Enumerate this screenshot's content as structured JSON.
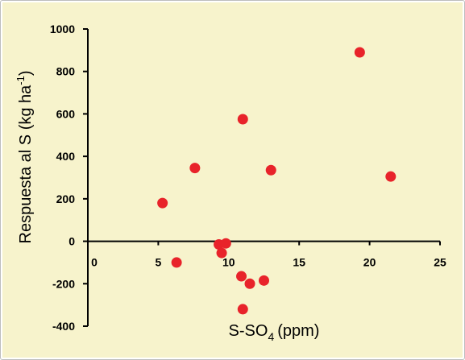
{
  "chart_data": {
    "type": "scatter",
    "title": "",
    "xlabel": "S-SO",
    "xlabel_subscript": "4",
    "xlabel_unit": "(ppm)",
    "ylabel": "Respuesta al S (kg ha",
    "ylabel_superscript": "-1",
    "ylabel_close": ")",
    "xlim": [
      0,
      25
    ],
    "ylim": [
      -400,
      1000
    ],
    "x_ticks": [
      0,
      5,
      10,
      15,
      20,
      25
    ],
    "y_ticks": [
      1000,
      800,
      600,
      400,
      200,
      0,
      -200,
      -400
    ],
    "x_tick_labels": [
      "0",
      "5",
      "10",
      "15",
      "20",
      "25"
    ],
    "y_tick_labels": [
      "1000",
      "800",
      "600",
      "400",
      "200",
      "0",
      "-200",
      "-400"
    ],
    "grid": false,
    "background_color": "#f7f3cc",
    "marker_color": "#e8232a",
    "points": [
      {
        "x": 5.3,
        "y": 180
      },
      {
        "x": 6.3,
        "y": -100
      },
      {
        "x": 7.6,
        "y": 345
      },
      {
        "x": 9.3,
        "y": -15
      },
      {
        "x": 9.5,
        "y": -55
      },
      {
        "x": 9.8,
        "y": -10
      },
      {
        "x": 10.9,
        "y": -165
      },
      {
        "x": 11.0,
        "y": 575
      },
      {
        "x": 11.0,
        "y": -320
      },
      {
        "x": 11.5,
        "y": -200
      },
      {
        "x": 12.5,
        "y": -185
      },
      {
        "x": 13.0,
        "y": 335
      },
      {
        "x": 19.3,
        "y": 890
      },
      {
        "x": 21.5,
        "y": 305
      }
    ]
  }
}
